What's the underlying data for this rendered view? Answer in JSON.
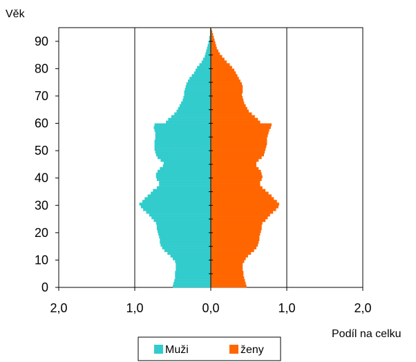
{
  "chart_data": {
    "type": "bar",
    "orientation": "horizontal-population-pyramid",
    "ylabel": "Věk",
    "xlabel": "Podíl na celku",
    "x_ticks": [
      "2,0",
      "1,0",
      "0,0",
      "1,0",
      "2,0"
    ],
    "x_range": [
      -2.0,
      2.0
    ],
    "y_ticks": [
      "0",
      "10",
      "20",
      "30",
      "40",
      "50",
      "60",
      "70",
      "80",
      "90"
    ],
    "y_range": [
      0,
      95
    ],
    "gridlines": "vertical at -1.0 and 1.0",
    "legend_placement": "bottom",
    "ages": [
      0,
      1,
      2,
      3,
      4,
      5,
      6,
      7,
      8,
      9,
      10,
      11,
      12,
      13,
      14,
      15,
      16,
      17,
      18,
      19,
      20,
      21,
      22,
      23,
      24,
      25,
      26,
      27,
      28,
      29,
      30,
      31,
      32,
      33,
      34,
      35,
      36,
      37,
      38,
      39,
      40,
      41,
      42,
      43,
      44,
      45,
      46,
      47,
      48,
      49,
      50,
      51,
      52,
      53,
      54,
      55,
      56,
      57,
      58,
      59,
      60,
      61,
      62,
      63,
      64,
      65,
      66,
      67,
      68,
      69,
      70,
      71,
      72,
      73,
      74,
      75,
      76,
      77,
      78,
      79,
      80,
      81,
      82,
      83,
      84,
      85,
      86,
      87,
      88,
      89,
      90,
      91,
      92,
      93,
      94
    ],
    "series": [
      {
        "name": "Muži",
        "color": "#33cccc",
        "values": [
          0.5,
          0.49,
          0.48,
          0.47,
          0.47,
          0.47,
          0.46,
          0.46,
          0.46,
          0.47,
          0.5,
          0.53,
          0.57,
          0.61,
          0.64,
          0.66,
          0.67,
          0.67,
          0.68,
          0.69,
          0.7,
          0.71,
          0.71,
          0.72,
          0.75,
          0.78,
          0.81,
          0.85,
          0.89,
          0.92,
          0.94,
          0.9,
          0.87,
          0.83,
          0.79,
          0.76,
          0.71,
          0.68,
          0.68,
          0.71,
          0.72,
          0.72,
          0.7,
          0.67,
          0.63,
          0.62,
          0.66,
          0.7,
          0.72,
          0.73,
          0.74,
          0.74,
          0.74,
          0.74,
          0.73,
          0.73,
          0.73,
          0.74,
          0.75,
          0.74,
          0.59,
          0.56,
          0.52,
          0.48,
          0.45,
          0.43,
          0.41,
          0.39,
          0.37,
          0.36,
          0.35,
          0.35,
          0.34,
          0.33,
          0.32,
          0.3,
          0.28,
          0.25,
          0.22,
          0.2,
          0.18,
          0.15,
          0.12,
          0.1,
          0.08,
          0.07,
          0.06,
          0.05,
          0.04,
          0.03,
          0.02,
          0.02,
          0.01,
          0.01,
          0.01
        ]
      },
      {
        "name": "ženy",
        "color": "#ff6600",
        "values": [
          0.47,
          0.46,
          0.45,
          0.44,
          0.43,
          0.43,
          0.42,
          0.42,
          0.42,
          0.44,
          0.46,
          0.49,
          0.53,
          0.57,
          0.6,
          0.62,
          0.63,
          0.64,
          0.64,
          0.65,
          0.66,
          0.67,
          0.67,
          0.68,
          0.72,
          0.75,
          0.78,
          0.82,
          0.86,
          0.89,
          0.9,
          0.87,
          0.83,
          0.8,
          0.76,
          0.72,
          0.68,
          0.65,
          0.65,
          0.67,
          0.68,
          0.67,
          0.66,
          0.63,
          0.6,
          0.6,
          0.63,
          0.67,
          0.7,
          0.71,
          0.72,
          0.73,
          0.74,
          0.74,
          0.74,
          0.75,
          0.76,
          0.77,
          0.79,
          0.8,
          0.65,
          0.62,
          0.58,
          0.54,
          0.5,
          0.48,
          0.46,
          0.44,
          0.43,
          0.42,
          0.41,
          0.42,
          0.42,
          0.42,
          0.41,
          0.39,
          0.37,
          0.35,
          0.33,
          0.31,
          0.28,
          0.25,
          0.21,
          0.18,
          0.15,
          0.12,
          0.1,
          0.08,
          0.07,
          0.06,
          0.05,
          0.04,
          0.03,
          0.02,
          0.01
        ]
      }
    ]
  }
}
